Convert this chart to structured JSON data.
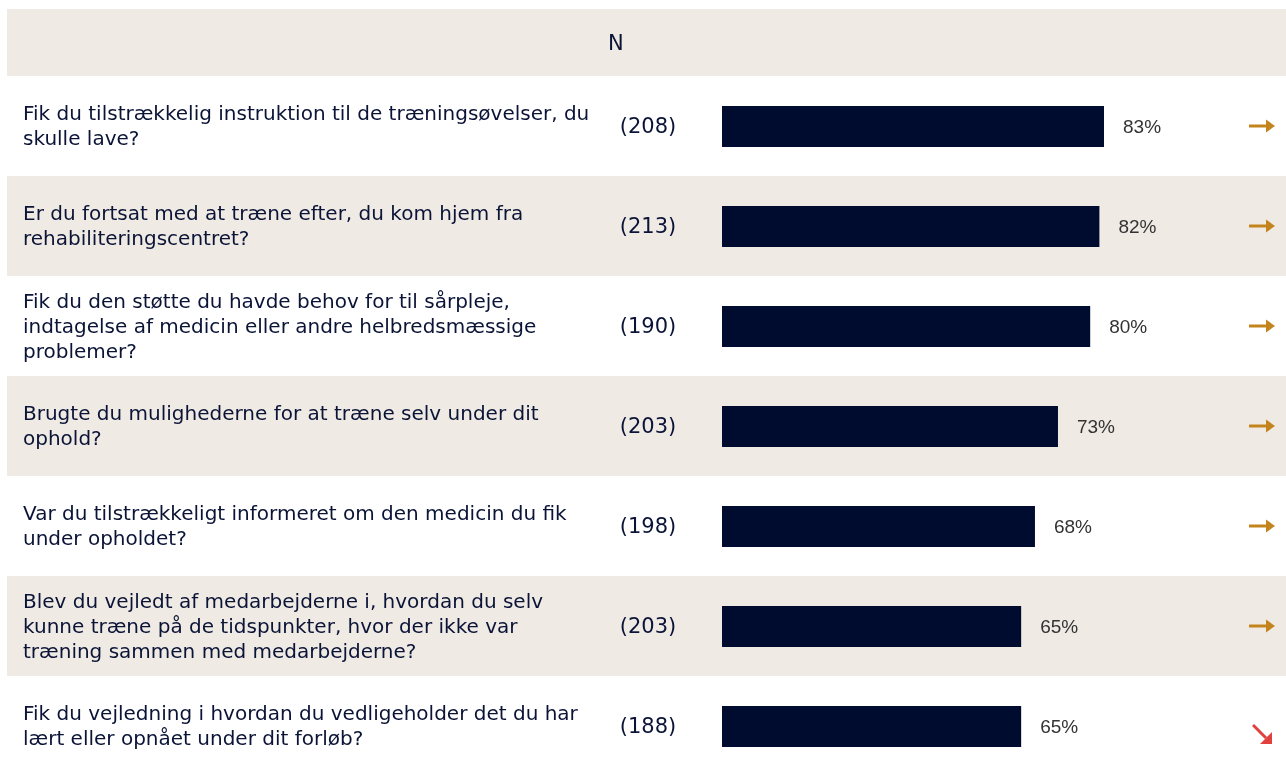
{
  "chart_data": {
    "type": "bar",
    "orientation": "horizontal",
    "categories": [
      "Fik du tilstrækkelig instruktion til de træningsøvelser, du skulle lave?",
      "Er du fortsat med at træne efter, du kom hjem fra rehabiliteringscentret?",
      "Fik du den støtte du havde behov for til sårpleje, indtagelse af medicin eller andre helbredsmæssige problemer?",
      "Brugte du mulighederne for at træne selv under dit ophold?",
      "Var du tilstrækkeligt informeret om den medicin du fik under opholdet?",
      "Blev du vejledt af medarbejderne i, hvordan du selv kunne træne på de tidspunkter, hvor der ikke var træning sammen med medarbejderne?",
      "Fik du vejledning i hvordan du vedligeholder det du har lært eller opnået under dit forløb?"
    ],
    "values": [
      83,
      82,
      80,
      73,
      68,
      65,
      65
    ],
    "value_labels": [
      "83%",
      "82%",
      "80%",
      "73%",
      "68%",
      "65%",
      "65%"
    ],
    "color": "#000c2f",
    "annotations": [
      "N",
      "(208)",
      "(213)",
      "(190)",
      "(203)",
      "(198)",
      "(203)",
      "(188)"
    ]
  }
}
